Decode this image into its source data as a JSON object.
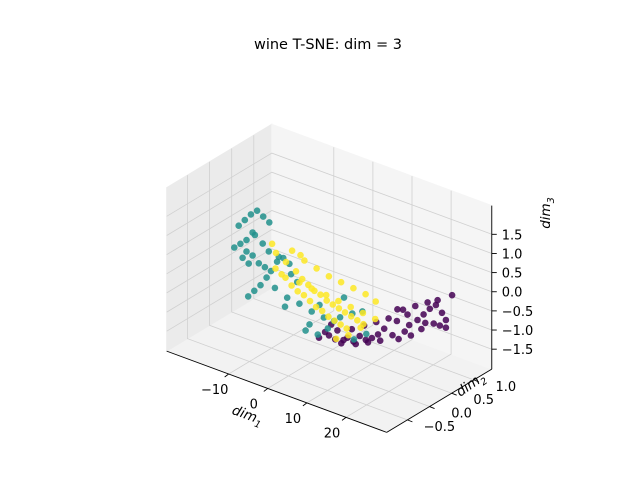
{
  "chart_data": {
    "type": "scatter",
    "projection": "3d",
    "title": "wine T-SNE: dim = 3",
    "axes": {
      "x": {
        "label": "dim",
        "sub": "1",
        "ticks": [
          "−10",
          "0",
          "10",
          "20"
        ],
        "tick_values": [
          -10,
          0,
          10,
          20
        ],
        "range": [
          -20,
          25
        ]
      },
      "y": {
        "label": "dim",
        "sub": "2",
        "ticks": [
          "−0.5",
          "0.0",
          "0.5",
          "1.0"
        ],
        "tick_values": [
          -0.5,
          0.0,
          0.5,
          1.0
        ],
        "range": [
          -0.8,
          1.3
        ]
      },
      "z": {
        "label": "dim",
        "sub": "3",
        "ticks": [
          "−1.5",
          "−1.0",
          "−0.5",
          "0.0",
          "0.5",
          "1.0",
          "1.5"
        ],
        "tick_values": [
          -1.5,
          -1.0,
          -0.5,
          0.0,
          0.5,
          1.0,
          1.5
        ],
        "range": [
          -1.6,
          1.9
        ]
      }
    },
    "grid": true,
    "legend": "none",
    "series": [
      {
        "color": "#440154",
        "points": [
          [
            12,
            0.9,
            -0.8
          ],
          [
            14,
            0.95,
            -0.9
          ],
          [
            16,
            1.0,
            -1.0
          ],
          [
            17,
            1.05,
            -0.85
          ],
          [
            18,
            1.1,
            -0.7
          ],
          [
            19,
            1.15,
            -0.6
          ],
          [
            20,
            1.2,
            -0.8
          ],
          [
            21,
            1.2,
            -0.95
          ],
          [
            15,
            0.8,
            -1.2
          ],
          [
            13,
            0.7,
            -1.3
          ],
          [
            12,
            0.6,
            -1.1
          ],
          [
            10,
            0.5,
            -1.35
          ],
          [
            9,
            0.45,
            -1.4
          ],
          [
            11,
            0.55,
            -1.25
          ],
          [
            8,
            0.4,
            -1.3
          ],
          [
            7,
            0.35,
            -1.45
          ],
          [
            6,
            0.3,
            -1.35
          ],
          [
            5,
            0.25,
            -1.5
          ],
          [
            4,
            0.2,
            -1.4
          ],
          [
            3,
            0.15,
            -1.3
          ],
          [
            6,
            0.4,
            -1.2
          ],
          [
            8,
            0.5,
            -1.1
          ],
          [
            10,
            0.6,
            -1.0
          ],
          [
            13,
            0.8,
            -1.0
          ],
          [
            15,
            0.9,
            -1.1
          ],
          [
            17,
            1.0,
            -1.2
          ],
          [
            18,
            1.0,
            -1.0
          ],
          [
            19,
            1.1,
            -1.05
          ],
          [
            20,
            1.15,
            -1.1
          ],
          [
            21,
            1.2,
            -1.15
          ],
          [
            16,
            0.85,
            -1.3
          ],
          [
            14,
            0.75,
            -1.4
          ],
          [
            11,
            0.6,
            -1.45
          ],
          [
            9,
            0.5,
            -1.5
          ],
          [
            7,
            0.4,
            -1.55
          ],
          [
            5,
            0.3,
            -1.45
          ],
          [
            4,
            0.25,
            -1.2
          ],
          [
            3,
            0.2,
            -1.05
          ],
          [
            2,
            0.15,
            -1.25
          ],
          [
            1,
            0.1,
            -1.4
          ],
          [
            12,
            0.7,
            -0.9
          ],
          [
            14,
            0.85,
            -0.7
          ],
          [
            16,
            0.95,
            -0.6
          ],
          [
            18,
            1.05,
            -0.5
          ],
          [
            20,
            1.1,
            -0.4
          ],
          [
            22,
            1.25,
            -0.3
          ]
        ]
      },
      {
        "color": "#21918c",
        "points": [
          [
            -15,
            -0.3,
            1.2
          ],
          [
            -14,
            -0.25,
            1.35
          ],
          [
            -13,
            -0.2,
            1.5
          ],
          [
            -12,
            -0.15,
            1.6
          ],
          [
            -11,
            -0.1,
            1.45
          ],
          [
            -10,
            -0.05,
            1.3
          ],
          [
            -12,
            -0.2,
            1.0
          ],
          [
            -14,
            -0.35,
            0.8
          ],
          [
            -13,
            -0.3,
            0.6
          ],
          [
            -12,
            -0.25,
            0.5
          ],
          [
            -11,
            -0.2,
            0.3
          ],
          [
            -10,
            -0.15,
            0.2
          ],
          [
            -9,
            -0.1,
            0.1
          ],
          [
            -8,
            -0.05,
            0.35
          ],
          [
            -7,
            0.0,
            0.45
          ],
          [
            -6,
            0.05,
            0.3
          ],
          [
            -9,
            -0.2,
            0.0
          ],
          [
            -10,
            -0.25,
            -0.2
          ],
          [
            -11,
            -0.3,
            -0.35
          ],
          [
            -12,
            -0.35,
            -0.5
          ],
          [
            -8,
            -0.1,
            -0.3
          ],
          [
            -6,
            0.0,
            -0.55
          ],
          [
            -4,
            0.1,
            -0.7
          ],
          [
            -2,
            0.2,
            -0.9
          ],
          [
            0,
            0.3,
            -1.05
          ],
          [
            2,
            0.35,
            -1.1
          ],
          [
            -3,
            0.15,
            -1.4
          ],
          [
            -1,
            0.25,
            -1.5
          ],
          [
            1,
            0.3,
            -1.3
          ],
          [
            3,
            0.4,
            -1.0
          ],
          [
            5,
            0.5,
            -0.9
          ],
          [
            7,
            0.55,
            -0.8
          ],
          [
            -13,
            -0.3,
            0.9
          ],
          [
            -15,
            -0.4,
            0.7
          ],
          [
            -12,
            -0.25,
            1.1
          ],
          [
            -10,
            -0.2,
            0.85
          ],
          [
            -9,
            -0.15,
            0.65
          ],
          [
            -7,
            -0.1,
            0.55
          ],
          [
            -5,
            0.0,
            0.1
          ],
          [
            -4,
            0.05,
            -0.1
          ],
          [
            -14,
            -0.3,
            0.4
          ],
          [
            -13,
            -0.25,
            0.25
          ],
          [
            0,
            0.2,
            -0.65
          ],
          [
            4,
            0.4,
            -0.45
          ],
          [
            -6,
            -0.05,
            -0.75
          ],
          [
            -2,
            0.15,
            -1.2
          ],
          [
            6,
            0.45,
            -1.5
          ],
          [
            8,
            0.55,
            -1.35
          ]
        ]
      },
      {
        "color": "#fde725",
        "points": [
          [
            -10,
            0.1,
            0.4
          ],
          [
            -8,
            0.15,
            0.2
          ],
          [
            -6,
            0.2,
            0.0
          ],
          [
            -5,
            0.25,
            -0.2
          ],
          [
            -4,
            0.3,
            -0.35
          ],
          [
            -3,
            0.35,
            -0.5
          ],
          [
            -2,
            0.4,
            -0.6
          ],
          [
            -1,
            0.45,
            -0.75
          ],
          [
            0,
            0.5,
            -0.85
          ],
          [
            1,
            0.55,
            -0.95
          ],
          [
            2,
            0.6,
            -1.05
          ],
          [
            3,
            0.65,
            -1.15
          ],
          [
            4,
            0.7,
            -1.25
          ],
          [
            5,
            0.75,
            -1.35
          ],
          [
            -7,
            0.05,
            -0.1
          ],
          [
            -6,
            0.1,
            -0.3
          ],
          [
            -5,
            0.15,
            -0.45
          ],
          [
            -4,
            0.2,
            -0.55
          ],
          [
            -3,
            0.25,
            -0.7
          ],
          [
            -2,
            0.3,
            -0.85
          ],
          [
            -1,
            0.35,
            -0.95
          ],
          [
            0,
            0.4,
            -1.1
          ],
          [
            1,
            0.45,
            -1.2
          ],
          [
            2,
            0.5,
            -1.3
          ],
          [
            3,
            0.55,
            -1.4
          ],
          [
            -9,
            0.0,
            0.1
          ],
          [
            -8,
            0.05,
            -0.05
          ],
          [
            -11,
            0.1,
            0.6
          ],
          [
            -7,
            0.2,
            0.5
          ],
          [
            -5,
            0.3,
            0.25
          ],
          [
            -3,
            0.4,
            0.05
          ],
          [
            -1,
            0.5,
            -0.15
          ],
          [
            1,
            0.6,
            -0.3
          ],
          [
            3,
            0.7,
            -0.45
          ],
          [
            5,
            0.8,
            -0.6
          ],
          [
            7,
            0.85,
            -0.75
          ],
          [
            0,
            0.35,
            -0.5
          ],
          [
            2,
            0.45,
            -0.65
          ],
          [
            4,
            0.55,
            -0.8
          ],
          [
            6,
            0.65,
            -0.95
          ],
          [
            8,
            0.75,
            -1.1
          ],
          [
            -2,
            0.2,
            -0.3
          ],
          [
            -4,
            0.1,
            -0.15
          ],
          [
            6,
            0.6,
            -1.3
          ],
          [
            4,
            0.5,
            -1.5
          ],
          [
            2,
            0.4,
            -1.6
          ],
          [
            -6,
            0.3,
            0.35
          ]
        ]
      }
    ]
  }
}
